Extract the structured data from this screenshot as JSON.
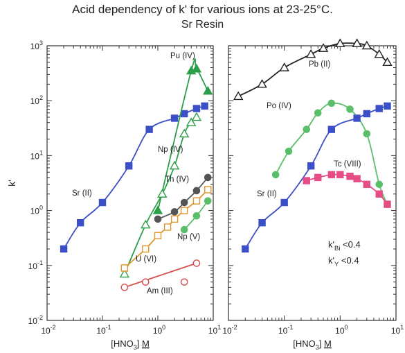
{
  "title_line1": "Acid dependency of k' for various ions at 23-25°C.",
  "title_line2": "Sr Resin",
  "ylabel": "k'",
  "xlabel": {
    "pre": "[HNO",
    "sub": "3",
    "post": "] ",
    "unit": "M"
  },
  "x_ticks": [
    {
      "v": 0.01,
      "m": "10",
      "e": "-2"
    },
    {
      "v": 0.1,
      "m": "10",
      "e": "-1"
    },
    {
      "v": 1,
      "m": "10",
      "e": "0"
    },
    {
      "v": 10,
      "m": "10",
      "e": "1"
    }
  ],
  "y_ticks": [
    {
      "v": 0.01,
      "m": "10",
      "e": "-2"
    },
    {
      "v": 0.1,
      "m": "10",
      "e": "-1"
    },
    {
      "v": 1,
      "m": "10",
      "e": "0"
    },
    {
      "v": 10,
      "m": "10",
      "e": "1"
    },
    {
      "v": 100,
      "m": "10",
      "e": "2"
    },
    {
      "v": 1000,
      "m": "10",
      "e": "3"
    }
  ],
  "colors": {
    "sr": "#3a4fc8",
    "pu": "#2d9e4a",
    "np": "#5bbf6a",
    "th": "#555555",
    "u": "#e0962a",
    "am": "#d84a4a",
    "pb": "#222222",
    "po": "#5bbf6a",
    "tc": "#e64c86",
    "axis": "#333333"
  },
  "chart_data": [
    {
      "type": "scatter",
      "xscale": "log",
      "yscale": "log",
      "xlim": [
        0.01,
        10
      ],
      "ylim": [
        0.01,
        1000
      ],
      "series": [
        {
          "name": "Sr (II)",
          "color": "#3a4fc8",
          "marker": "square-filled",
          "x": [
            0.02,
            0.04,
            0.1,
            0.3,
            0.7,
            2,
            3,
            5,
            7
          ],
          "y": [
            0.2,
            0.6,
            1.4,
            6.5,
            30,
            48,
            58,
            72,
            80
          ]
        },
        {
          "name": "Pu (IV)",
          "color": "#2d9e4a",
          "marker": "triangle-filled",
          "x": [
            1,
            4,
            5,
            8
          ],
          "y": [
            1,
            350,
            380,
            150
          ]
        },
        {
          "name": "Np (IV)",
          "color": "#2d9e4a",
          "marker": "triangle-open",
          "x": [
            0.25,
            0.6,
            1.2,
            2,
            3,
            4,
            5
          ],
          "y": [
            0.07,
            0.55,
            2,
            6.5,
            25,
            40,
            50
          ]
        },
        {
          "name": "Th (IV)",
          "color": "#555555",
          "marker": "circle-filled",
          "x": [
            1,
            2,
            3,
            5,
            8
          ],
          "y": [
            0.7,
            0.95,
            1.4,
            2.3,
            4
          ]
        },
        {
          "name": "U (VI)",
          "color": "#e0962a",
          "marker": "square-open",
          "x": [
            0.25,
            0.6,
            1,
            1.5,
            2,
            3,
            5,
            8
          ],
          "y": [
            0.09,
            0.2,
            0.35,
            0.5,
            0.7,
            1,
            1.5,
            2.4
          ]
        },
        {
          "name": "Np (V)",
          "color": "#5bbf6a",
          "marker": "circle-filled",
          "x": [
            3,
            5,
            8
          ],
          "y": [
            0.45,
            0.8,
            1.5
          ]
        },
        {
          "name": "Am (III)",
          "color": "#d84a4a",
          "marker": "circle-open",
          "x": [
            0.25,
            0.6,
            3,
            5
          ],
          "y": [
            0.04,
            0.05,
            0.05,
            0.11
          ]
        }
      ]
    },
    {
      "type": "scatter",
      "xscale": "log",
      "yscale": "log",
      "xlim": [
        0.01,
        10
      ],
      "ylim": [
        0.01,
        1000
      ],
      "series": [
        {
          "name": "Pb (II)",
          "color": "#222222",
          "marker": "triangle-open",
          "x": [
            0.015,
            0.04,
            0.1,
            0.3,
            0.5,
            1,
            2,
            3,
            5,
            7
          ],
          "y": [
            120,
            200,
            400,
            700,
            900,
            1100,
            1100,
            1000,
            700,
            500
          ]
        },
        {
          "name": "Po (IV)",
          "color": "#5bbf6a",
          "marker": "circle-filled",
          "x": [
            0.07,
            0.12,
            0.25,
            0.4,
            0.7,
            1.5,
            3,
            5,
            7
          ],
          "y": [
            4.5,
            12,
            30,
            60,
            90,
            70,
            25,
            3,
            1.3
          ]
        },
        {
          "name": "Sr (II)",
          "color": "#3a4fc8",
          "marker": "square-filled",
          "x": [
            0.02,
            0.04,
            0.1,
            0.3,
            0.7,
            2,
            3,
            5,
            7
          ],
          "y": [
            0.2,
            0.6,
            1.4,
            6.5,
            30,
            48,
            58,
            72,
            80
          ]
        },
        {
          "name": "Tc (VIII)",
          "color": "#e64c86",
          "marker": "square-filled",
          "x": [
            0.25,
            0.4,
            0.7,
            1,
            1.5,
            2,
            3,
            5,
            7
          ],
          "y": [
            3.5,
            4,
            4.5,
            4.5,
            4.2,
            3.8,
            3,
            2,
            1.3
          ]
        }
      ],
      "annotations": [
        {
          "base": "k'",
          "sub": "Bi",
          "text": " <0.4"
        },
        {
          "base": "k'",
          "sub": "Y",
          "text": " <0.4"
        }
      ]
    }
  ]
}
